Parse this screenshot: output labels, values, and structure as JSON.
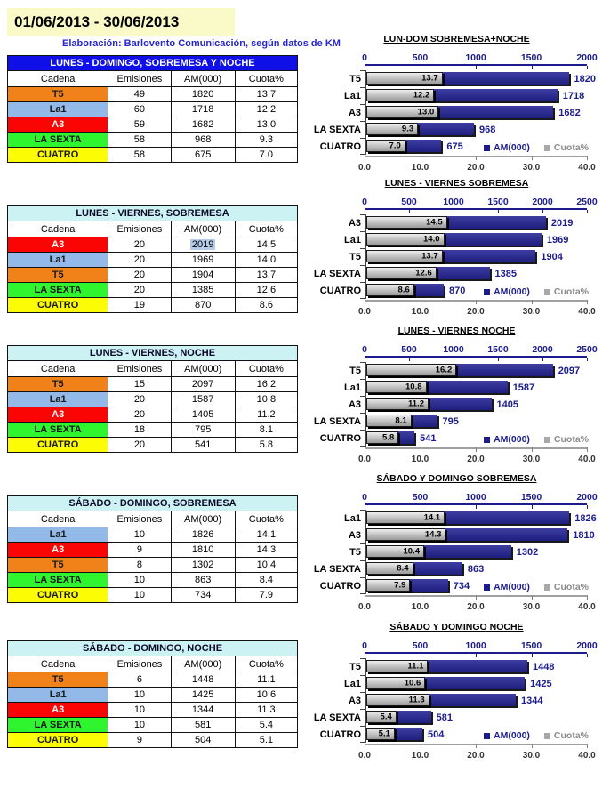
{
  "header": {
    "date_range": "01/06/2013 - 30/06/2013",
    "source_line": "Elaboración: Barlovento Comunicación, según datos de KM"
  },
  "table_columns": [
    "Cadena",
    "Emisiones",
    "AM(000)",
    "Cuota%"
  ],
  "legend": {
    "am": "AM(000)",
    "cuota": "Cuota%"
  },
  "colors": {
    "bar_blue": "#22228C",
    "bar_gray": "#B0B0B0",
    "axis_navy": "#1C1C8C",
    "table1_header_bg": "#0F0FE8",
    "table_header_bg": "#CCF2F4",
    "highlight_bg": "#B5CDE9",
    "date_banner_bg": "#FAFAC8",
    "channels": {
      "T5": {
        "bg": "#F08219",
        "fg": "#1a1a1a"
      },
      "La1": {
        "bg": "#92B9E8",
        "fg": "#1a1a1a"
      },
      "A3": {
        "bg": "#FB0404",
        "fg": "#FFFFFF"
      },
      "LA SEXTA": {
        "bg": "#2EF52E",
        "fg": "#1a1a1a"
      },
      "CUATRO": {
        "bg": "#FCFC04",
        "fg": "#1a1a1a"
      }
    }
  },
  "sections": [
    {
      "table_title": "LUNES - DOMINGO, SOBREMESA Y NOCHE",
      "table_header_style": "blue",
      "rows": [
        {
          "cadena": "T5",
          "emisiones": 49,
          "am": 1820,
          "cuota": 13.7
        },
        {
          "cadena": "La1",
          "emisiones": 60,
          "am": 1718,
          "cuota": 12.2
        },
        {
          "cadena": "A3",
          "emisiones": 59,
          "am": 1682,
          "cuota": 13.0
        },
        {
          "cadena": "LA SEXTA",
          "emisiones": 58,
          "am": 968,
          "cuota": 9.3
        },
        {
          "cadena": "CUATRO",
          "emisiones": 58,
          "am": 675,
          "cuota": 7.0
        }
      ]
    },
    {
      "table_title": "LUNES - VIERNES, SOBREMESA",
      "table_header_style": "cyan",
      "highlight": {
        "row": 0,
        "field": "am"
      },
      "rows": [
        {
          "cadena": "A3",
          "emisiones": 20,
          "am": 2019,
          "cuota": 14.5
        },
        {
          "cadena": "La1",
          "emisiones": 20,
          "am": 1969,
          "cuota": 14.0
        },
        {
          "cadena": "T5",
          "emisiones": 20,
          "am": 1904,
          "cuota": 13.7
        },
        {
          "cadena": "LA SEXTA",
          "emisiones": 20,
          "am": 1385,
          "cuota": 12.6
        },
        {
          "cadena": "CUATRO",
          "emisiones": 19,
          "am": 870,
          "cuota": 8.6
        }
      ]
    },
    {
      "table_title": "LUNES - VIERNES, NOCHE",
      "table_header_style": "cyan",
      "rows": [
        {
          "cadena": "T5",
          "emisiones": 15,
          "am": 2097,
          "cuota": 16.2
        },
        {
          "cadena": "La1",
          "emisiones": 20,
          "am": 1587,
          "cuota": 10.8
        },
        {
          "cadena": "A3",
          "emisiones": 20,
          "am": 1405,
          "cuota": 11.2
        },
        {
          "cadena": "LA SEXTA",
          "emisiones": 18,
          "am": 795,
          "cuota": 8.1
        },
        {
          "cadena": "CUATRO",
          "emisiones": 20,
          "am": 541,
          "cuota": 5.8
        }
      ]
    },
    {
      "table_title": "SÁBADO - DOMINGO, SOBREMESA",
      "table_header_style": "cyan",
      "rows": [
        {
          "cadena": "La1",
          "emisiones": 10,
          "am": 1826,
          "cuota": 14.1
        },
        {
          "cadena": "A3",
          "emisiones": 9,
          "am": 1810,
          "cuota": 14.3
        },
        {
          "cadena": "T5",
          "emisiones": 8,
          "am": 1302,
          "cuota": 10.4
        },
        {
          "cadena": "LA SEXTA",
          "emisiones": 10,
          "am": 863,
          "cuota": 8.4
        },
        {
          "cadena": "CUATRO",
          "emisiones": 10,
          "am": 734,
          "cuota": 7.9
        }
      ]
    },
    {
      "table_title": "SÁBADO - DOMINGO, NOCHE",
      "table_header_style": "cyan",
      "rows": [
        {
          "cadena": "T5",
          "emisiones": 6,
          "am": 1448,
          "cuota": 11.1
        },
        {
          "cadena": "La1",
          "emisiones": 10,
          "am": 1425,
          "cuota": 10.6
        },
        {
          "cadena": "A3",
          "emisiones": 10,
          "am": 1344,
          "cuota": 11.3
        },
        {
          "cadena": "LA SEXTA",
          "emisiones": 10,
          "am": 581,
          "cuota": 5.4
        },
        {
          "cadena": "CUATRO",
          "emisiones": 9,
          "am": 504,
          "cuota": 5.1
        }
      ]
    }
  ],
  "chart_data": [
    {
      "type": "bar",
      "title": "LUN-DOM  SOBREMESA+NOCHE",
      "categories": [
        "T5",
        "La1",
        "A3",
        "LA SEXTA",
        "CUATRO"
      ],
      "series": [
        {
          "name": "AM(000)",
          "axis": "top",
          "values": [
            1820,
            1718,
            1682,
            968,
            675
          ]
        },
        {
          "name": "Cuota%",
          "axis": "bottom",
          "values": [
            13.7,
            12.2,
            13.0,
            9.3,
            7.0
          ]
        }
      ],
      "top_axis": {
        "ticks": [
          0,
          500,
          1000,
          1500,
          2000
        ],
        "max": 2000
      },
      "bottom_axis": {
        "ticks": [
          0,
          10,
          20,
          30,
          40
        ],
        "max": 40,
        "tick_labels": [
          "0.0",
          "10.0",
          "20.0",
          "30.0",
          "40.0"
        ]
      },
      "legend_position": "inside-bottom-right"
    },
    {
      "type": "bar",
      "title": "LUNES - VIERNES SOBREMESA",
      "categories": [
        "A3",
        "La1",
        "T5",
        "LA SEXTA",
        "CUATRO"
      ],
      "series": [
        {
          "name": "AM(000)",
          "axis": "top",
          "values": [
            2019,
            1969,
            1904,
            1385,
            870
          ]
        },
        {
          "name": "Cuota%",
          "axis": "bottom",
          "values": [
            14.5,
            14.0,
            13.7,
            12.6,
            8.6
          ]
        }
      ],
      "top_axis": {
        "ticks": [
          0,
          500,
          1000,
          1500,
          2000,
          2500
        ],
        "max": 2500
      },
      "bottom_axis": {
        "ticks": [
          0,
          10,
          20,
          30,
          40
        ],
        "max": 40,
        "tick_labels": [
          "0.0",
          "10.0",
          "20.0",
          "30.0",
          "40.0"
        ]
      },
      "legend_position": "inside-bottom-right"
    },
    {
      "type": "bar",
      "title": "LUNES - VIERNES  NOCHE",
      "categories": [
        "T5",
        "La1",
        "A3",
        "LA SEXTA",
        "CUATRO"
      ],
      "series": [
        {
          "name": "AM(000)",
          "axis": "top",
          "values": [
            2097,
            1587,
            1405,
            795,
            541
          ]
        },
        {
          "name": "Cuota%",
          "axis": "bottom",
          "values": [
            16.2,
            10.8,
            11.2,
            8.1,
            5.8
          ]
        }
      ],
      "top_axis": {
        "ticks": [
          0,
          500,
          1000,
          1500,
          2000,
          2500
        ],
        "max": 2500
      },
      "bottom_axis": {
        "ticks": [
          0,
          10,
          20,
          30,
          40
        ],
        "max": 40,
        "tick_labels": [
          "0.0",
          "10.0",
          "20.0",
          "30.0",
          "40.0"
        ]
      },
      "legend_position": "inside-bottom-right"
    },
    {
      "type": "bar",
      "title": "SÁBADO Y DOMINGO SOBREMESA",
      "categories": [
        "La1",
        "A3",
        "T5",
        "LA SEXTA",
        "CUATRO"
      ],
      "series": [
        {
          "name": "AM(000)",
          "axis": "top",
          "values": [
            1826,
            1810,
            1302,
            863,
            734
          ]
        },
        {
          "name": "Cuota%",
          "axis": "bottom",
          "values": [
            14.1,
            14.3,
            10.4,
            8.4,
            7.9
          ]
        }
      ],
      "top_axis": {
        "ticks": [
          0,
          500,
          1000,
          1500,
          2000
        ],
        "max": 2000
      },
      "bottom_axis": {
        "ticks": [
          0,
          10,
          20,
          30,
          40
        ],
        "max": 40,
        "tick_labels": [
          "0.0",
          "10.0",
          "20.0",
          "30.0",
          "40.0"
        ]
      },
      "legend_position": "inside-bottom-right"
    },
    {
      "type": "bar",
      "title": "SÁBADO Y DOMINGO  NOCHE",
      "categories": [
        "T5",
        "La1",
        "A3",
        "LA SEXTA",
        "CUATRO"
      ],
      "series": [
        {
          "name": "AM(000)",
          "axis": "top",
          "values": [
            1448,
            1425,
            1344,
            581,
            504
          ]
        },
        {
          "name": "Cuota%",
          "axis": "bottom",
          "values": [
            11.1,
            10.6,
            11.3,
            5.4,
            5.1
          ]
        }
      ],
      "top_axis": {
        "ticks": [
          0,
          500,
          1000,
          1500,
          2000
        ],
        "max": 2000
      },
      "bottom_axis": {
        "ticks": [
          0,
          10,
          20,
          30,
          40
        ],
        "max": 40,
        "tick_labels": [
          "0.0",
          "10.0",
          "20.0",
          "30.0",
          "40.0"
        ]
      },
      "legend_position": "inside-bottom-right"
    }
  ]
}
